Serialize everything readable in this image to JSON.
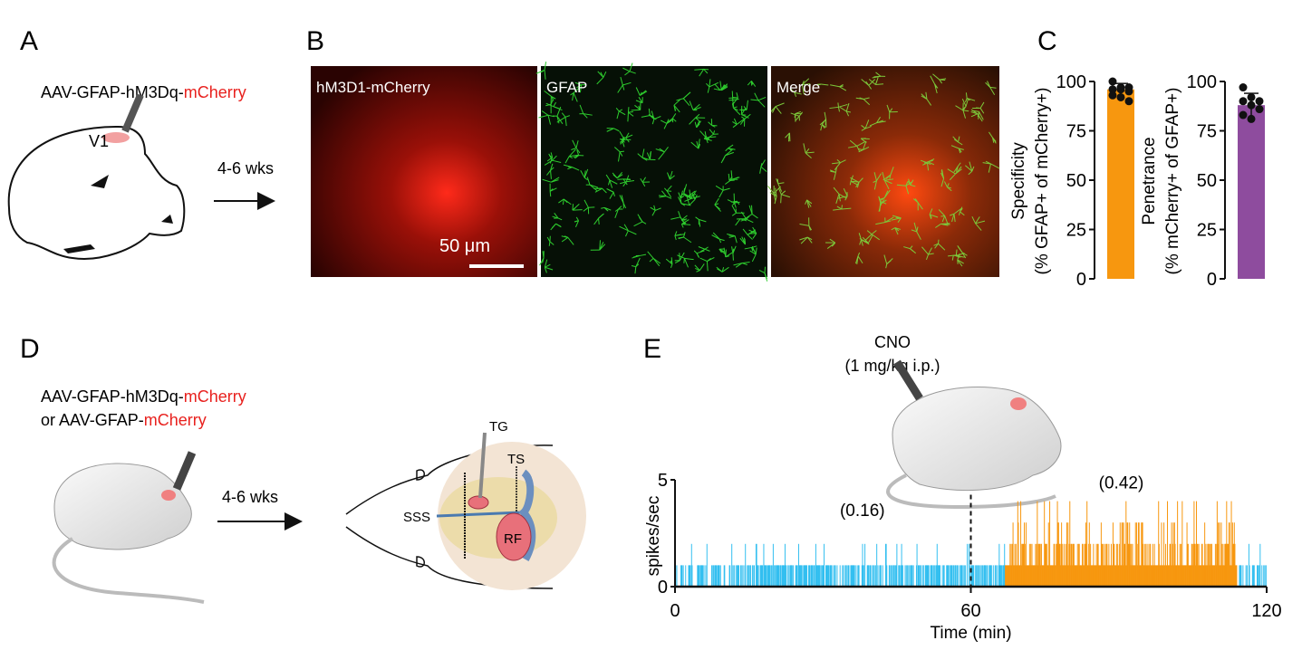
{
  "panels": {
    "A": {
      "label": "A",
      "virus_prefix": "AAV-GFAP-hM3Dq-",
      "virus_reporter": "mCherry",
      "region": "V1",
      "duration": "4-6 wks"
    },
    "B": {
      "label": "B",
      "images": [
        {
          "title": "hM3D1-mCherry",
          "channel_color": "#e8211e"
        },
        {
          "title": "GFAP",
          "channel_color": "#2ecc2e"
        },
        {
          "title": "Merge",
          "channel_color": "#e25a18"
        }
      ],
      "scale_bar": "50 μm"
    },
    "C": {
      "label": "C"
    },
    "D": {
      "label": "D",
      "virus1_prefix": "AAV-GFAP-hM3Dq-",
      "virus1_reporter": "mCherry",
      "virus2_prefix": "or AAV-GFAP-",
      "virus2_reporter": "mCherry",
      "duration": "4-6 wks",
      "labels": {
        "tg": "TG",
        "ts": "TS",
        "sss": "SSS",
        "rf": "RF"
      }
    },
    "E": {
      "label": "E",
      "injection": "CNO",
      "dose": "(1 mg/kg i.p.)"
    }
  },
  "chart_data": [
    {
      "type": "bar",
      "panel": "C-left",
      "ylabel_line1": "Specificity",
      "ylabel_line2": "(% GFAP+ of mCherry+)",
      "ylim": [
        0,
        100
      ],
      "yticks": [
        "0",
        "25",
        "50",
        "75",
        "100"
      ],
      "mean": 96,
      "sd": 3,
      "points": [
        100,
        97,
        97,
        96,
        96,
        95,
        93,
        92,
        90
      ],
      "color": "#f7970f"
    },
    {
      "type": "bar",
      "panel": "C-right",
      "ylabel_line1": "Penetrance",
      "ylabel_line2": "(% mCherry+ of GFAP+)",
      "ylim": [
        0,
        100
      ],
      "yticks": [
        "0",
        "25",
        "50",
        "75",
        "100"
      ],
      "mean": 88,
      "sd": 6,
      "points": [
        97,
        92,
        90,
        90,
        88,
        86,
        83,
        81
      ],
      "color": "#8e4c9e"
    },
    {
      "type": "bar",
      "panel": "E",
      "xlabel": "Time (min)",
      "ylabel": "spikes/sec",
      "xlim": [
        0,
        120
      ],
      "ylim": [
        0,
        5
      ],
      "xticks": [
        "0",
        "60",
        "120"
      ],
      "yticks": [
        "0",
        "5"
      ],
      "injection_time": 60,
      "segments": [
        {
          "start": 0,
          "end": 67,
          "max": 2,
          "color": "#33bff0",
          "label": "(0.16)"
        },
        {
          "start": 67,
          "end": 114,
          "max": 4,
          "color": "#f7970f",
          "label": "(0.42)"
        },
        {
          "start": 114,
          "end": 120,
          "max": 2,
          "color": "#33bff0"
        }
      ]
    }
  ]
}
